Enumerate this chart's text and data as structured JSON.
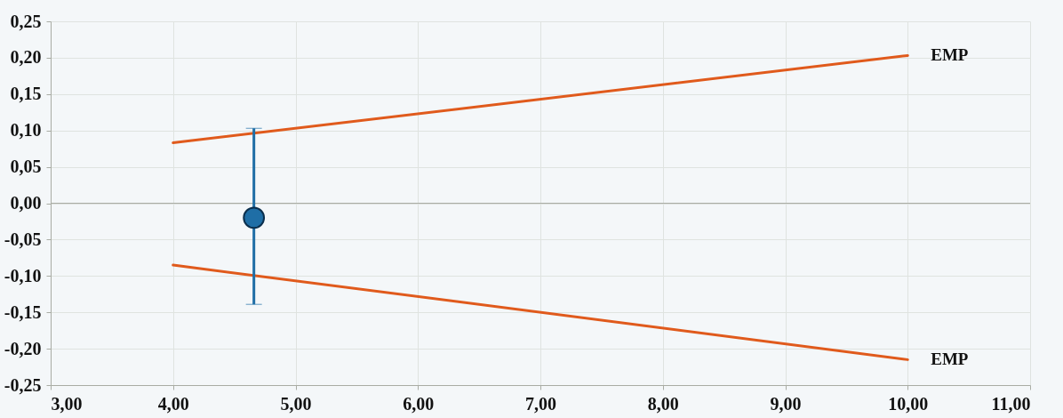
{
  "chart_data": {
    "type": "line",
    "xlim": [
      3,
      11
    ],
    "xticks": [
      {
        "value": 3,
        "label": "3,00"
      },
      {
        "value": 4,
        "label": "4,00"
      },
      {
        "value": 5,
        "label": "5,00"
      },
      {
        "value": 6,
        "label": "6,00"
      },
      {
        "value": 7,
        "label": "7,00"
      },
      {
        "value": 8,
        "label": "8,00"
      },
      {
        "value": 9,
        "label": "9,00"
      },
      {
        "value": 10,
        "label": "10,00"
      },
      {
        "value": 11,
        "label": "11,00"
      }
    ],
    "ylim": [
      -0.25,
      0.25
    ],
    "yticks": [
      {
        "value": -0.25,
        "label": "-0,25"
      },
      {
        "value": -0.2,
        "label": "-0,20"
      },
      {
        "value": -0.15,
        "label": "-0,15"
      },
      {
        "value": -0.1,
        "label": "-0,10"
      },
      {
        "value": -0.05,
        "label": "-0,05"
      },
      {
        "value": 0,
        "label": "0,00"
      },
      {
        "value": 0.05,
        "label": "0,05"
      },
      {
        "value": 0.1,
        "label": "0,10"
      },
      {
        "value": 0.15,
        "label": "0,15"
      },
      {
        "value": 0.2,
        "label": "0,20"
      },
      {
        "value": 0.25,
        "label": "0,25"
      }
    ],
    "grid": true,
    "ref_lines": [
      {
        "axis": "y",
        "value": 0,
        "color": "#a9aca4"
      }
    ],
    "series": [
      {
        "name": "EMP",
        "color": "#e05a1c",
        "x": [
          4,
          10
        ],
        "values": [
          0.083,
          0.203
        ]
      },
      {
        "name": "EMP",
        "color": "#e05a1c",
        "x": [
          4,
          10
        ],
        "values": [
          -0.085,
          -0.215
        ]
      },
      {
        "type": "scatter",
        "marker": "circle",
        "color": "#1f6ea6",
        "x": [
          4.66
        ],
        "values": [
          -0.02
        ],
        "errors": [
          [
            -0.139,
            0.103
          ]
        ]
      }
    ]
  }
}
